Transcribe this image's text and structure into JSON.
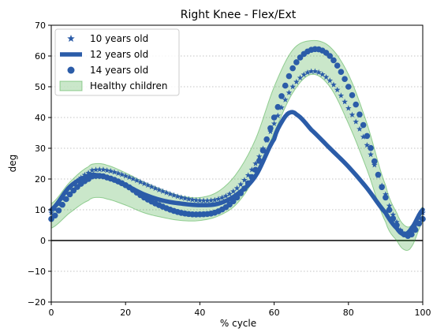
{
  "chart_data": {
    "type": "line",
    "title": "Right Knee - Flex/Ext",
    "xlabel": "% cycle",
    "ylabel": "deg",
    "xlim": [
      0,
      100
    ],
    "ylim": [
      -20,
      70
    ],
    "xticks": [
      0,
      20,
      40,
      60,
      80,
      100
    ],
    "yticks": [
      -20,
      -10,
      0,
      10,
      20,
      30,
      40,
      50,
      60,
      70
    ],
    "grid": "horizontal dotted",
    "legend_position": "upper-left",
    "zero_line": true,
    "band": {
      "name": "Healthy children",
      "color": "#2ca02c",
      "x": [
        0,
        5,
        10,
        12,
        15,
        20,
        25,
        30,
        35,
        40,
        45,
        50,
        55,
        60,
        65,
        70,
        75,
        80,
        85,
        90,
        93,
        95,
        97,
        100
      ],
      "lower": [
        4,
        9,
        13,
        14,
        13.5,
        11.5,
        9,
        7.5,
        6.5,
        6.5,
        8,
        12,
        21,
        35,
        48,
        54,
        50,
        38,
        23,
        6,
        0,
        -3,
        -2,
        6
      ],
      "upper": [
        12,
        19,
        24,
        25,
        24.5,
        22,
        19,
        16.5,
        14.5,
        14,
        16,
        22,
        33,
        50,
        62,
        65,
        63,
        54,
        38,
        18,
        9,
        5,
        5,
        11
      ]
    },
    "series": [
      {
        "name": "10 years old",
        "marker": "star",
        "color": "#2b5ca8",
        "x": [
          0,
          5,
          10,
          12,
          15,
          20,
          25,
          30,
          35,
          40,
          45,
          50,
          55,
          60,
          65,
          70,
          75,
          80,
          85,
          90,
          93,
          95,
          97,
          100
        ],
        "y": [
          9,
          17,
          22,
          23,
          22.8,
          21,
          18.5,
          16,
          14,
          13,
          13.5,
          17,
          25,
          38,
          50,
          55,
          52,
          43,
          31,
          15,
          6,
          2,
          3,
          9
        ]
      },
      {
        "name": "12 years old",
        "marker": "thick-line",
        "color": "#2b5ca8",
        "x": [
          0,
          5,
          10,
          12,
          15,
          20,
          25,
          30,
          35,
          40,
          45,
          50,
          55,
          60,
          62,
          64,
          66,
          70,
          75,
          80,
          85,
          90,
          93,
          95,
          97,
          100
        ],
        "y": [
          10,
          17.5,
          21,
          21.3,
          20.5,
          18,
          15,
          13,
          12,
          11.5,
          12,
          15,
          21,
          33,
          38.5,
          41.5,
          41,
          36,
          30,
          24,
          17,
          9,
          4,
          2,
          4,
          10
        ]
      },
      {
        "name": "14 years old",
        "marker": "circle",
        "color": "#2b5ca8",
        "x": [
          0,
          5,
          10,
          12,
          15,
          20,
          25,
          30,
          35,
          40,
          45,
          50,
          55,
          60,
          65,
          70,
          75,
          80,
          85,
          90,
          93,
          95,
          97,
          100
        ],
        "y": [
          7,
          15,
          20,
          21,
          20.5,
          18,
          14,
          11,
          9,
          8.5,
          9.5,
          14,
          23,
          40,
          56,
          62,
          60,
          50,
          34,
          14,
          5,
          2,
          2,
          7
        ]
      }
    ]
  }
}
